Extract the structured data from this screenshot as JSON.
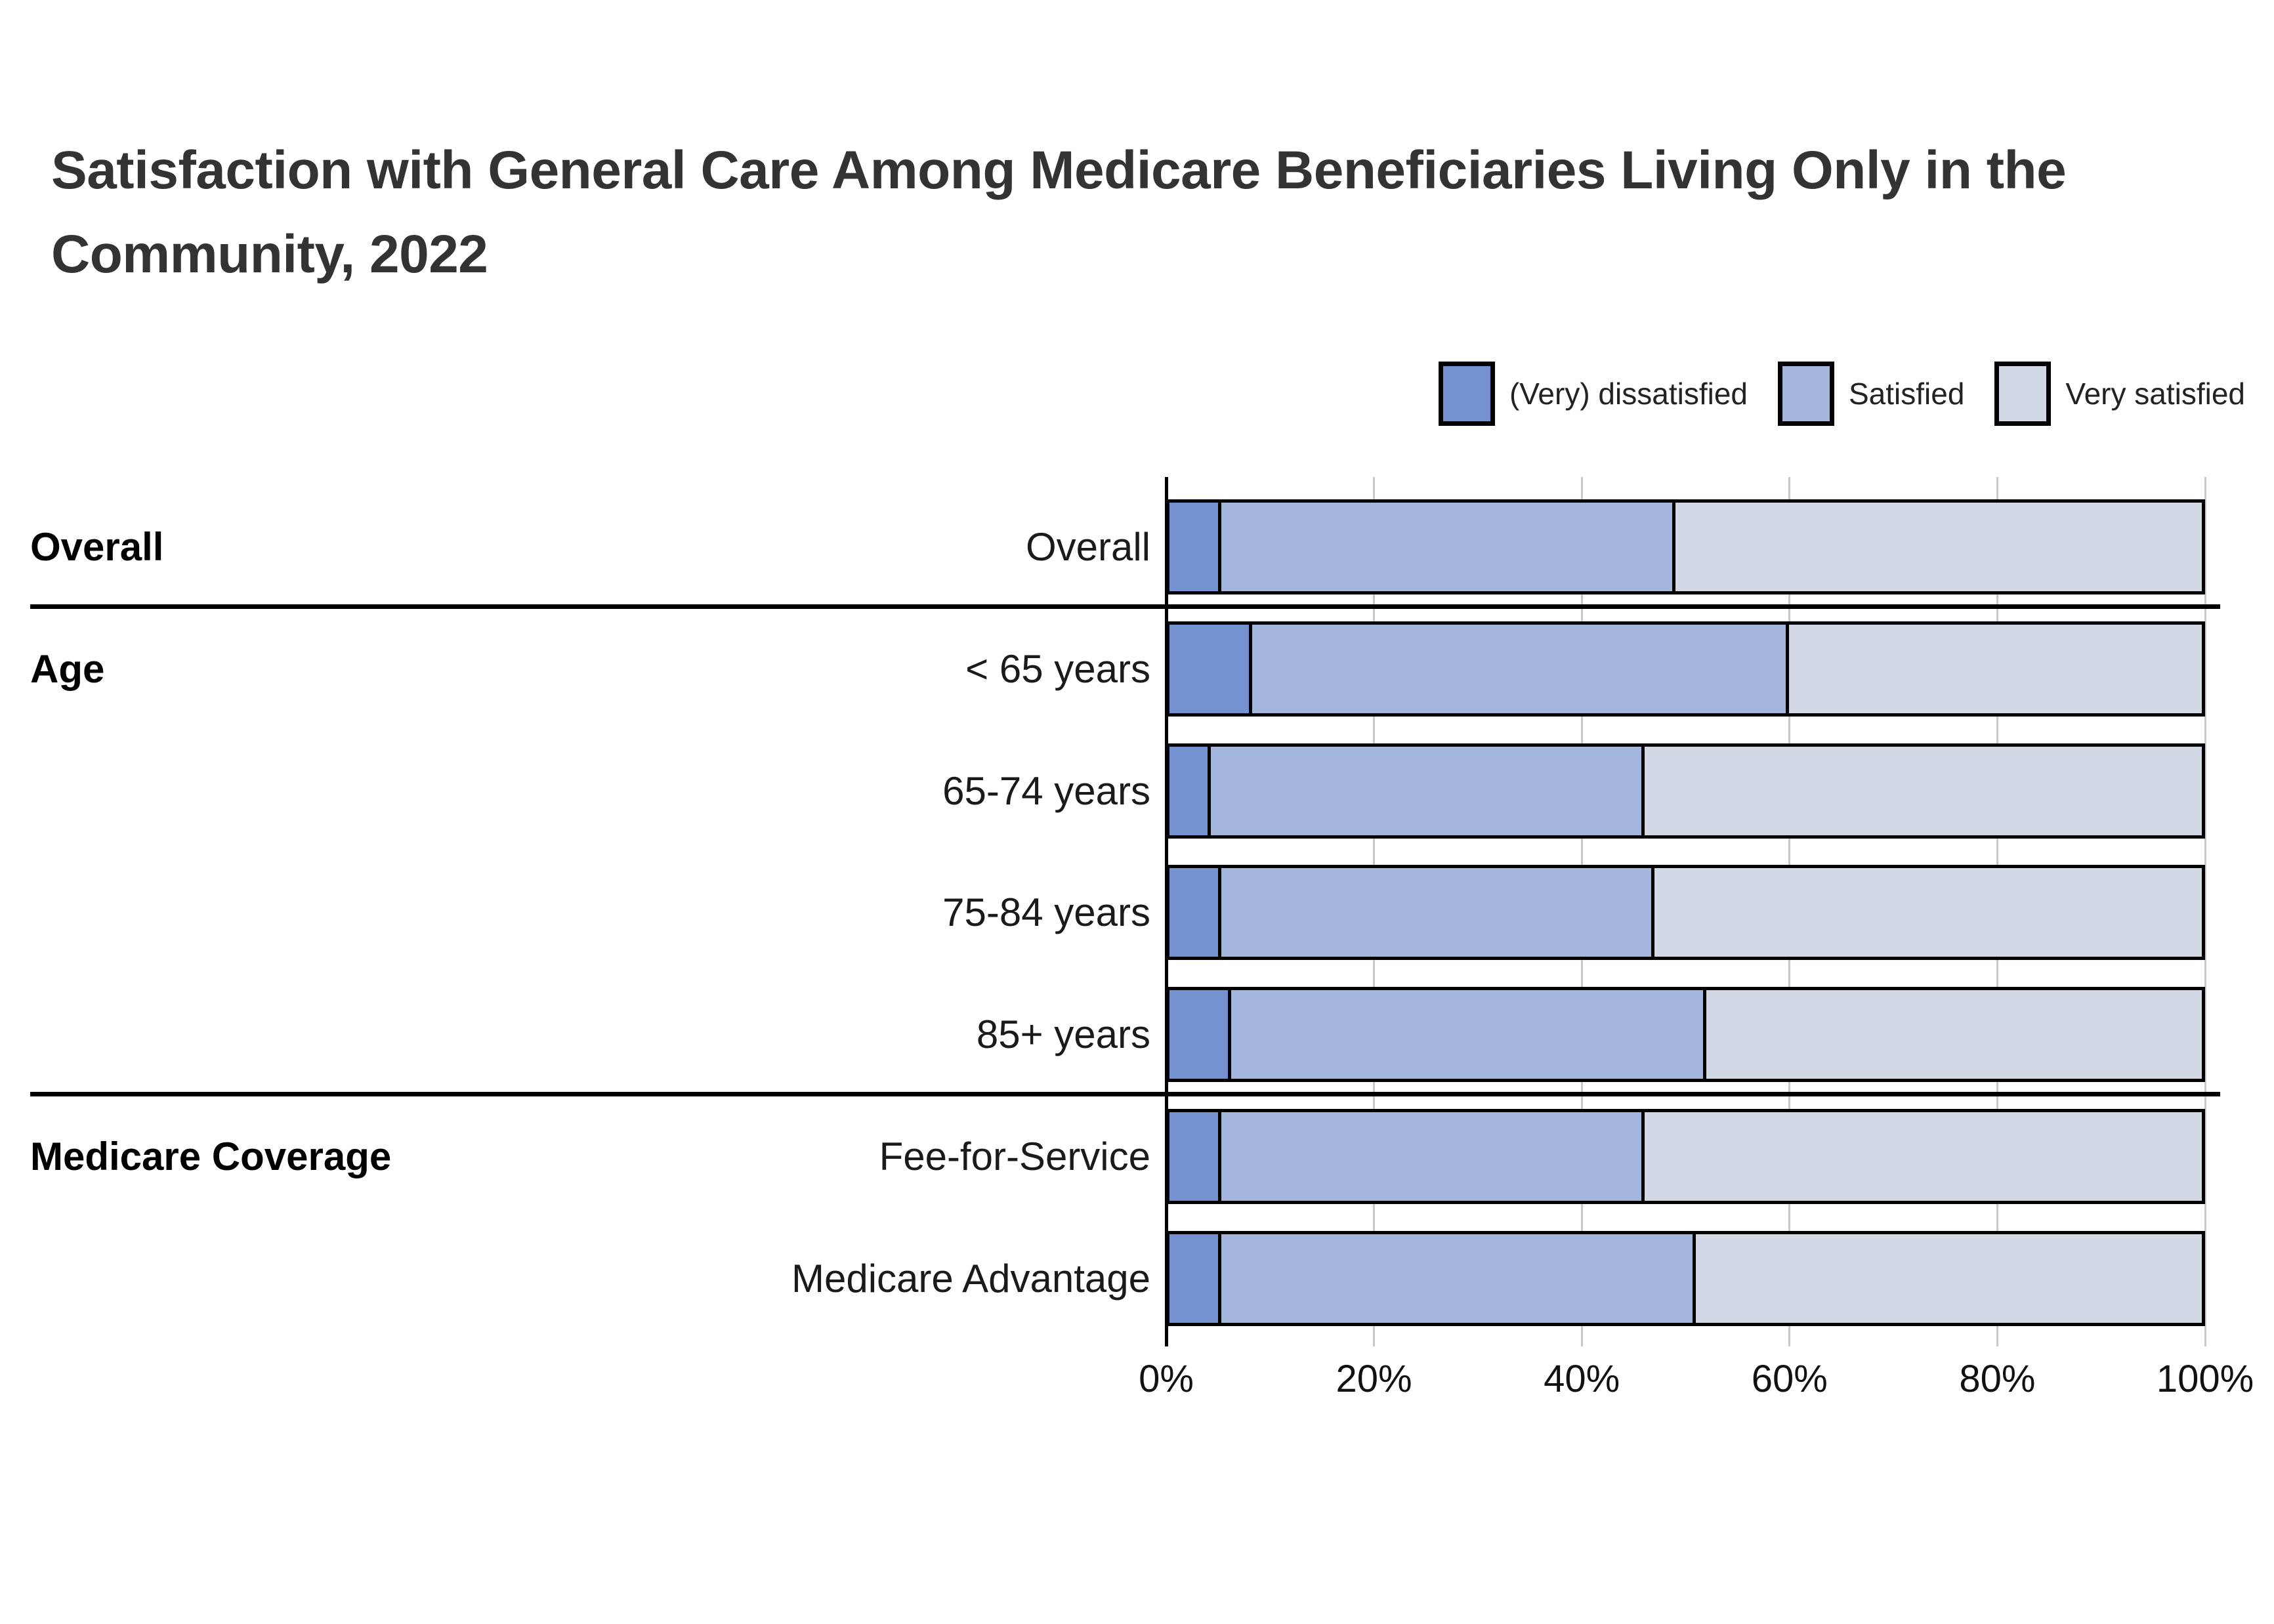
{
  "title": {
    "line1": "Satisfaction with General Care Among Medicare Beneficiaries Living Only in the",
    "line2": "Community, 2022"
  },
  "legend": [
    {
      "label": "(Very) dissatisfied",
      "color": "#7492D0"
    },
    {
      "label": "Satisfied",
      "color": "#A2B7DB"
    },
    {
      "label": "Very satisfied",
      "color": "#D2D9E5"
    }
  ],
  "colors": {
    "bar_border": "#000000",
    "gridline": "#c9c9c9",
    "axis": "#000000",
    "separator": "#000000",
    "title_text": "#333333"
  },
  "chart_data": {
    "type": "bar",
    "variant": "horizontal-stacked",
    "title": "Satisfaction with General Care Among Medicare Beneficiaries Living Only in the Community, 2022",
    "series_names": [
      "(Very) dissatisfied",
      "Satisfied",
      "Very satisfied"
    ],
    "x_ticks": [
      "0%",
      "20%",
      "40%",
      "60%",
      "80%",
      "100%"
    ],
    "xlim": [
      0,
      100
    ],
    "x_unit": "%",
    "grid": "vertical",
    "legend_position": "top-right",
    "groups": [
      {
        "label": "Overall",
        "separator_above": false,
        "rows": [
          {
            "label": "Overall",
            "values": [
              5,
              44,
              51
            ]
          }
        ]
      },
      {
        "label": "Age",
        "separator_above": true,
        "rows": [
          {
            "label": "< 65 years",
            "values": [
              8,
              52,
              40
            ]
          },
          {
            "label": "65-74 years",
            "values": [
              4,
              42,
              54
            ]
          },
          {
            "label": "75-84 years",
            "values": [
              5,
              42,
              53
            ]
          },
          {
            "label": "85+ years",
            "values": [
              6,
              46,
              48
            ]
          }
        ]
      },
      {
        "label": "Medicare Coverage",
        "separator_above": true,
        "rows": [
          {
            "label": "Fee-for-Service",
            "values": [
              5,
              41,
              54
            ]
          },
          {
            "label": "Medicare Advantage",
            "values": [
              5,
              46,
              49
            ]
          }
        ]
      }
    ]
  }
}
